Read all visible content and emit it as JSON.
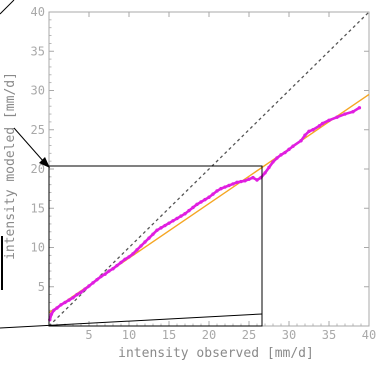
{
  "chart_data": {
    "type": "scatter",
    "title": "",
    "xlabel": "intensity observed [mm/d]",
    "ylabel": "intensity modeled [mm/d]",
    "xlim": [
      0,
      40
    ],
    "ylim": [
      0,
      40
    ],
    "x_ticks": [
      5,
      10,
      15,
      20,
      25,
      30,
      35,
      40
    ],
    "y_ticks": [
      5,
      10,
      15,
      20,
      25,
      30,
      35,
      40
    ],
    "x_tick_labels": [
      "5",
      "10",
      "15",
      "20",
      "25",
      "30",
      "35",
      "40"
    ],
    "y_tick_labels": [
      "5",
      "10",
      "15",
      "20",
      "25",
      "30",
      "35",
      "40"
    ],
    "grid": false,
    "legend": "none",
    "series": [
      {
        "type": "line",
        "role": "1:1 reference",
        "style": "dashed",
        "color": "#555555",
        "x": [
          0,
          40
        ],
        "y": [
          0,
          40
        ]
      },
      {
        "type": "line",
        "role": "linear fit",
        "style": "solid",
        "color": "#f5a623",
        "x": [
          0,
          40
        ],
        "y": [
          1.7,
          29.5
        ]
      },
      {
        "type": "scatter",
        "role": "quantile points",
        "color": "#e01ee0",
        "x": [
          0.1,
          0.3,
          0.6,
          1.0,
          1.5,
          2.0,
          2.5,
          3.0,
          3.5,
          4.0,
          4.5,
          5.0,
          5.5,
          6.0,
          6.5,
          7.0,
          7.5,
          8.0,
          8.5,
          9.0,
          9.5,
          10.0,
          10.5,
          11.0,
          11.5,
          12.0,
          12.5,
          13.0,
          13.5,
          14.0,
          14.5,
          15.0,
          15.5,
          16.0,
          16.5,
          17.0,
          17.5,
          18.0,
          18.5,
          19.0,
          19.5,
          20.0,
          20.5,
          21.0,
          21.5,
          22.0,
          22.5,
          23.0,
          23.5,
          24.0,
          24.5,
          25.0,
          25.5,
          26.0,
          26.5,
          27.0,
          27.5,
          28.0,
          28.5,
          29.0,
          29.5,
          30.0,
          30.5,
          31.5,
          32.0,
          32.5,
          33.0,
          33.8,
          34.2,
          35.0,
          36.0,
          37.0,
          38.0,
          38.8
        ],
        "y": [
          0.8,
          1.5,
          2.0,
          2.3,
          2.7,
          3.0,
          3.3,
          3.6,
          4.0,
          4.3,
          4.7,
          5.1,
          5.5,
          5.9,
          6.3,
          6.6,
          7.0,
          7.3,
          7.7,
          8.1,
          8.5,
          8.8,
          9.2,
          9.7,
          10.2,
          10.7,
          11.2,
          11.7,
          12.2,
          12.5,
          12.8,
          13.1,
          13.4,
          13.7,
          14.0,
          14.3,
          14.7,
          15.1,
          15.5,
          15.8,
          16.1,
          16.4,
          16.8,
          17.2,
          17.5,
          17.7,
          17.9,
          18.1,
          18.3,
          18.4,
          18.5,
          18.7,
          18.9,
          18.6,
          18.9,
          19.5,
          20.2,
          20.9,
          21.4,
          21.8,
          22.1,
          22.5,
          22.9,
          23.6,
          24.3,
          24.8,
          25.0,
          25.5,
          25.8,
          26.2,
          26.6,
          27.0,
          27.3,
          27.8
        ]
      }
    ]
  },
  "colors": {
    "frame": "#a9a9a9",
    "tick_text": "#a9a9a9",
    "axis_title": "#8a8a8a",
    "annotation": "#000000"
  }
}
